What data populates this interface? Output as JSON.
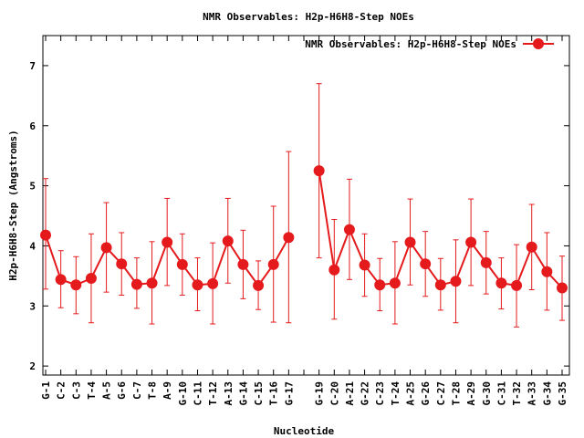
{
  "chart_data": {
    "type": "line",
    "title": "NMR Observables: H2p-H6H8-Step NOEs",
    "xlabel": "Nucleotide",
    "ylabel": "H2p-H6H8-Step (Angstroms)",
    "ylim": [
      1.85,
      7.5
    ],
    "yticks": [
      2,
      3,
      4,
      5,
      6,
      7
    ],
    "legend_position": "top-right",
    "grid": false,
    "categories": [
      "G-1",
      "C-2",
      "C-3",
      "T-4",
      "A-5",
      "G-6",
      "C-7",
      "T-8",
      "A-9",
      "G-10",
      "C-11",
      "T-12",
      "A-13",
      "G-14",
      "C-15",
      "T-16",
      "G-17",
      "",
      "G-19",
      "C-20",
      "A-21",
      "G-22",
      "C-23",
      "T-24",
      "A-25",
      "G-26",
      "C-27",
      "T-28",
      "A-29",
      "G-30",
      "C-31",
      "T-32",
      "A-33",
      "G-34",
      "G-35"
    ],
    "series": [
      {
        "name": "NMR Observables: H2p-H6H8-Step NOEs",
        "color": "#e41a1c",
        "values": [
          4.18,
          3.44,
          3.35,
          3.46,
          3.97,
          3.7,
          3.36,
          3.38,
          4.06,
          3.69,
          3.35,
          3.37,
          4.08,
          3.69,
          3.34,
          3.69,
          4.14,
          null,
          5.25,
          3.6,
          4.27,
          3.68,
          3.35,
          3.38,
          4.06,
          3.7,
          3.35,
          3.41,
          4.06,
          3.72,
          3.38,
          3.34,
          3.98,
          3.57,
          3.3
        ],
        "err_low": [
          3.28,
          2.97,
          2.87,
          2.72,
          3.23,
          3.18,
          2.96,
          2.7,
          3.34,
          3.18,
          2.92,
          2.7,
          3.38,
          3.12,
          2.94,
          2.73,
          2.72,
          null,
          3.8,
          2.78,
          3.44,
          3.16,
          2.92,
          2.7,
          3.35,
          3.16,
          2.93,
          2.72,
          3.34,
          3.2,
          2.95,
          2.65,
          3.27,
          2.93,
          2.76
        ],
        "err_high": [
          5.12,
          3.92,
          3.82,
          4.2,
          4.72,
          4.22,
          3.8,
          4.07,
          4.79,
          4.2,
          3.8,
          4.05,
          4.79,
          4.26,
          3.75,
          4.66,
          5.57,
          null,
          6.7,
          4.44,
          5.11,
          4.2,
          3.79,
          4.07,
          4.78,
          4.24,
          3.79,
          4.1,
          4.78,
          4.24,
          3.8,
          4.02,
          4.69,
          4.22,
          3.83
        ]
      }
    ]
  }
}
